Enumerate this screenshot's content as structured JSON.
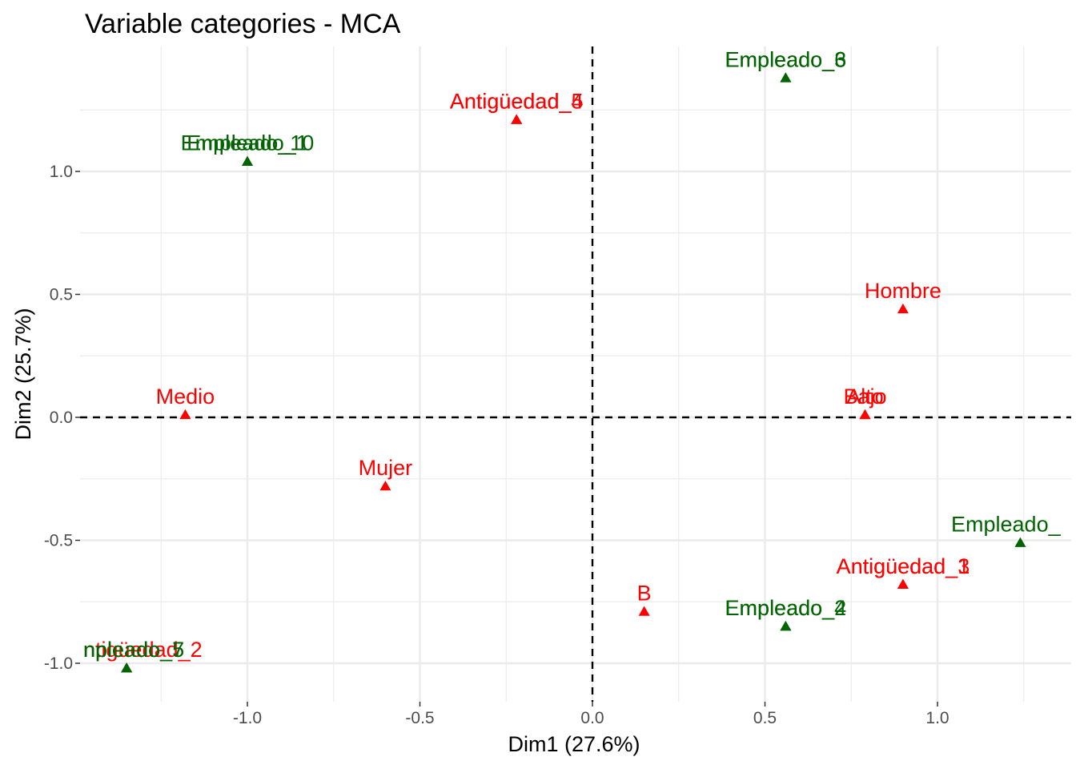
{
  "chart_data": {
    "type": "scatter",
    "title": "Variable categories - MCA",
    "xlabel": "Dim1 (27.6%)",
    "ylabel": "Dim2 (25.7%)",
    "xlim": [
      -1.5,
      1.4
    ],
    "ylim": [
      -1.1,
      1.5
    ],
    "x_ticks": [
      -1.0,
      -0.5,
      0.0,
      0.5,
      1.0
    ],
    "x_tick_labels": [
      "-1.0",
      "-0.5",
      "0.0",
      "0.5",
      "1.0"
    ],
    "y_ticks": [
      -1.0,
      -0.5,
      0.0,
      0.5,
      1.0
    ],
    "y_tick_labels": [
      "-1.0",
      "-0.5",
      "0.0",
      "0.5",
      "1.0"
    ],
    "grid": true,
    "reference_lines": {
      "x": 0,
      "y": 0,
      "style": "dashed"
    },
    "colors": {
      "red_group": "#ff0000",
      "green_group": "#006400",
      "grid": "#ebebeb",
      "reference": "#000000"
    },
    "points": [
      {
        "label": "Empleado_3",
        "x": 0.56,
        "y": 1.38,
        "group": "green"
      },
      {
        "label": "Empleado_6",
        "x": 0.56,
        "y": 1.38,
        "group": "green"
      },
      {
        "label": "Antigüedad_4",
        "x": -0.22,
        "y": 1.21,
        "group": "red"
      },
      {
        "label": "Antigüedad_5",
        "x": -0.22,
        "y": 1.21,
        "group": "red"
      },
      {
        "label": "Empleado_1",
        "x": -1.0,
        "y": 1.04,
        "group": "green"
      },
      {
        "label": "Empleado_10",
        "x": -1.0,
        "y": 1.04,
        "group": "green"
      },
      {
        "label": "Hombre",
        "x": 0.9,
        "y": 0.44,
        "group": "red"
      },
      {
        "label": "Medio",
        "x": -1.18,
        "y": 0.01,
        "group": "red"
      },
      {
        "label": "Bajo",
        "x": 0.79,
        "y": 0.01,
        "group": "red"
      },
      {
        "label": "Alto",
        "x": 0.79,
        "y": 0.01,
        "group": "red"
      },
      {
        "label": "Mujer",
        "x": -0.6,
        "y": -0.28,
        "group": "red"
      },
      {
        "label": "Empleado_",
        "x": 1.24,
        "y": -0.51,
        "group": "green"
      },
      {
        "label": "Antigüedad_1",
        "x": 0.9,
        "y": -0.68,
        "group": "red"
      },
      {
        "label": "Antigüedad_3",
        "x": 0.9,
        "y": -0.68,
        "group": "red"
      },
      {
        "label": "B",
        "x": 0.15,
        "y": -0.79,
        "group": "red"
      },
      {
        "label": "Empleado_2",
        "x": 0.56,
        "y": -0.85,
        "group": "green"
      },
      {
        "label": "Empleado_4",
        "x": 0.56,
        "y": -0.85,
        "group": "green"
      },
      {
        "label": "ntigüedad_2",
        "x": -1.35,
        "y": -1.02,
        "group": "red"
      },
      {
        "label": "npleado_5",
        "x": -1.35,
        "y": -1.02,
        "group": "green"
      },
      {
        "label": "npleado_7",
        "x": -1.35,
        "y": -1.02,
        "group": "green"
      }
    ]
  }
}
